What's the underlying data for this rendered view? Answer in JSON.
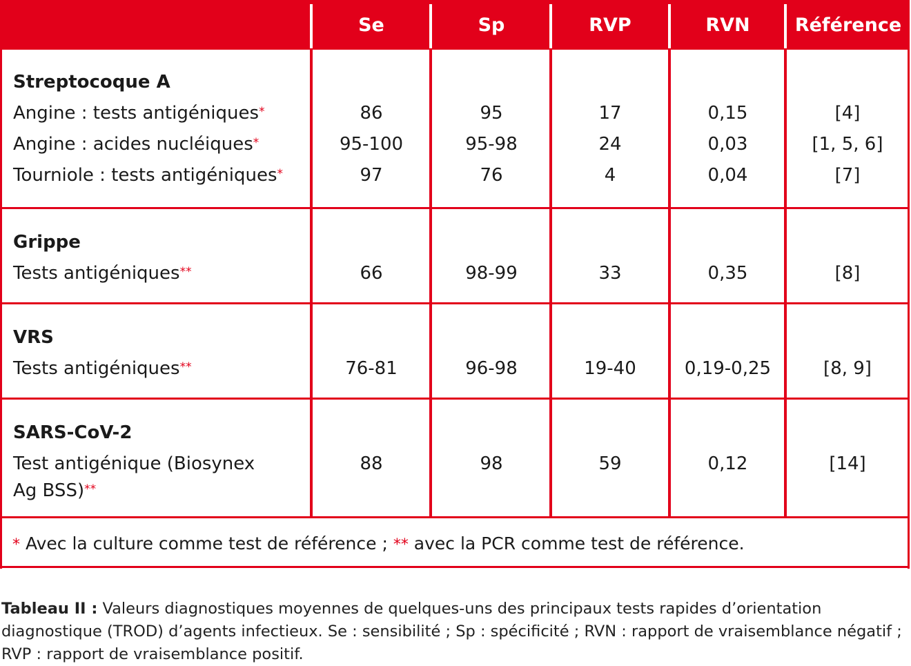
{
  "header": [
    "",
    "Se",
    "Sp",
    "RVP",
    "RVN",
    "Référence"
  ],
  "sections": [
    {
      "title": "Streptocoque A",
      "rows": [
        {
          "label": "Angine : tests antigéniques",
          "mark": "*",
          "se": "86",
          "sp": "95",
          "rvp": "17",
          "rvn": "0,15",
          "ref": "[4]"
        },
        {
          "label": "Angine : acides nucléiques",
          "mark": "*",
          "se": "95-100",
          "sp": "95-98",
          "rvp": "24",
          "rvn": "0,03",
          "ref": "[1, 5, 6]"
        },
        {
          "label": "Tourniole : tests antigéniques",
          "mark": "*",
          "se": "97",
          "sp": "76",
          "rvp": "4",
          "rvn": "0,04",
          "ref": "[7]"
        }
      ]
    },
    {
      "title": "Grippe",
      "rows": [
        {
          "label": "Tests antigéniques",
          "mark": "**",
          "se": "66",
          "sp": "98-99",
          "rvp": "33",
          "rvn": "0,35",
          "ref": "[8]"
        }
      ]
    },
    {
      "title": "VRS",
      "rows": [
        {
          "label": "Tests antigéniques",
          "mark": "**",
          "se": "76-81",
          "sp": "96-98",
          "rvp": "19-40",
          "rvn": "0,19-0,25",
          "ref": "[8, 9]"
        }
      ]
    },
    {
      "title": "SARS-CoV-2",
      "rows": [
        {
          "label": "Test antigénique (Biosynex",
          "label2": "Ag BSS)",
          "mark": "**",
          "se": "88",
          "sp": "98",
          "rvp": "59",
          "rvn": "0,12",
          "ref": "[14]"
        }
      ]
    }
  ],
  "footnote": {
    "mark1": "*",
    "text1": " Avec la culture comme test de référence ; ",
    "mark2": "**",
    "text2": " avec la PCR comme test de référence."
  },
  "caption": {
    "label": "Tableau II :",
    "text": " Valeurs diagnostiques moyennes de quelques-uns des principaux tests rapides d’orientation diagnostique (TROD) d’agents infectieux. Se : sensibilité ; Sp : spécificité ; RVN : rapport de vraisemblance négatif ; RVP : rapport de vraisemblance positif."
  },
  "colors": {
    "accent": "#e2001a"
  }
}
